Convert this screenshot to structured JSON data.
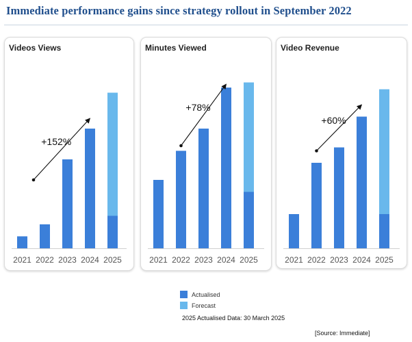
{
  "title": "Immediate performance gains since strategy rollout in September 2022",
  "colors": {
    "actualised": "#3b7fd9",
    "forecast": "#69b8ec",
    "title": "#1f4e8c"
  },
  "chart_data": [
    {
      "type": "bar",
      "title": "Videos Views",
      "categories": [
        "2021",
        "2022",
        "2023",
        "2024",
        "2025"
      ],
      "series": [
        {
          "name": "Actualised",
          "values": [
            7,
            14,
            52,
            70,
            19
          ]
        },
        {
          "name": "Forecast",
          "values": [
            0,
            0,
            0,
            0,
            72
          ]
        }
      ],
      "ylim": [
        0,
        100
      ],
      "annotation": "+152%",
      "arrow": {
        "from": {
          "x": 0.5,
          "y": 40
        },
        "to": {
          "x": 3.0,
          "y": 76
        }
      }
    },
    {
      "type": "bar",
      "title": "Minutes Viewed",
      "categories": [
        "2021",
        "2022",
        "2023",
        "2024",
        "2025"
      ],
      "series": [
        {
          "name": "Actualised",
          "values": [
            40,
            57,
            70,
            94,
            33
          ]
        },
        {
          "name": "Forecast",
          "values": [
            0,
            0,
            0,
            0,
            64
          ]
        }
      ],
      "ylim": [
        0,
        100
      ],
      "annotation": "+78%",
      "arrow": {
        "from": {
          "x": 1.0,
          "y": 60
        },
        "to": {
          "x": 3.0,
          "y": 96
        }
      }
    },
    {
      "type": "bar",
      "title": "Video Revenue",
      "categories": [
        "2021",
        "2022",
        "2023",
        "2024",
        "2025"
      ],
      "series": [
        {
          "name": "Actualised",
          "values": [
            20,
            50,
            59,
            77,
            20
          ]
        },
        {
          "name": "Forecast",
          "values": [
            0,
            0,
            0,
            0,
            73
          ]
        }
      ],
      "ylim": [
        0,
        100
      ],
      "annotation": "+60%",
      "arrow": {
        "from": {
          "x": 1.0,
          "y": 57
        },
        "to": {
          "x": 3.0,
          "y": 84
        }
      }
    }
  ],
  "legend": [
    {
      "label": "Actualised",
      "color_key": "actualised"
    },
    {
      "label": "Forecast",
      "color_key": "forecast"
    }
  ],
  "note": "2025 Actualised Data: 30 March 2025",
  "source": "[Source: Immediate]"
}
